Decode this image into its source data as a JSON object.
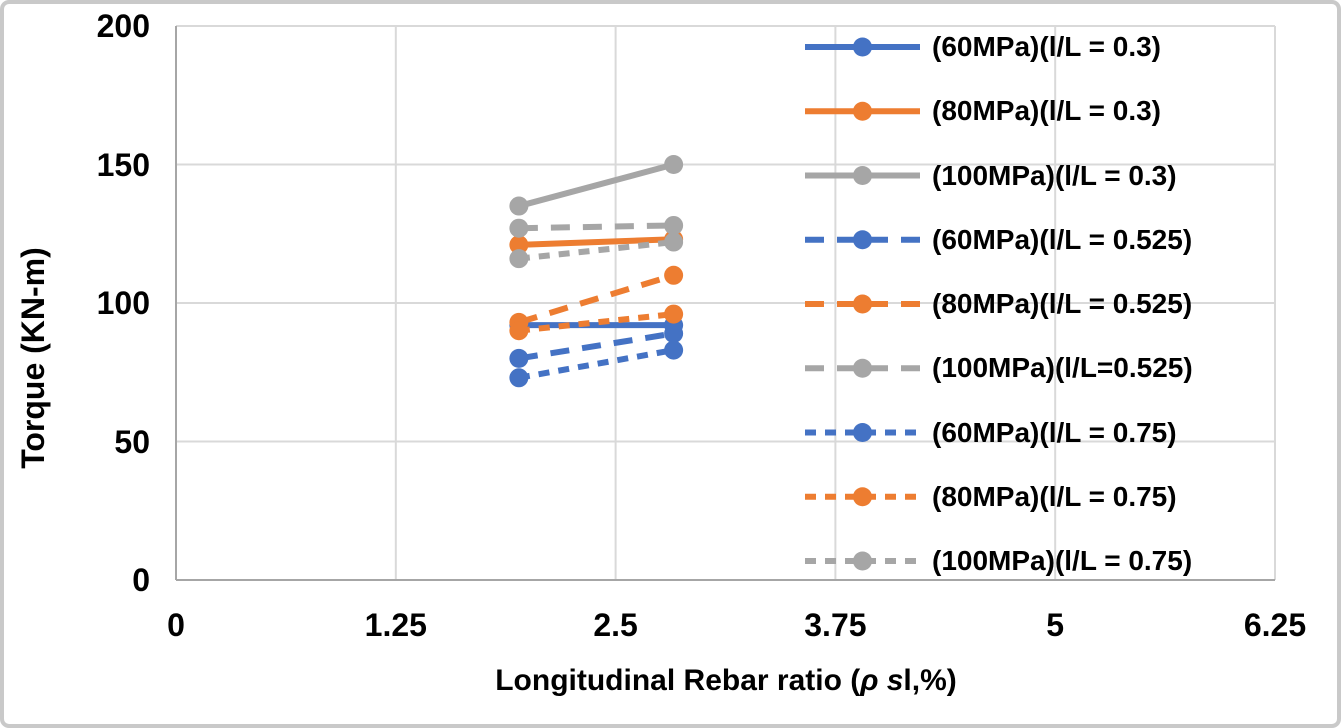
{
  "figure": {
    "background": "#ffffff",
    "border_color": "#c9c9c9"
  },
  "axis_titles": {
    "y": "Torque (KN-m)",
    "x_prefix": "Longitudinal Rebar ratio (",
    "x_italic": "ρ s",
    "x_suffix": "l,%)"
  },
  "chart_data": {
    "type": "line",
    "title": "",
    "x": [
      1.95,
      2.83
    ],
    "series": [
      {
        "name": "(60MPa)(l/L = 0.3)",
        "color": "#4472C4",
        "dash": "solid",
        "values": [
          92,
          92
        ]
      },
      {
        "name": "(80MPa)(l/L = 0.3)",
        "color": "#ED7D31",
        "dash": "solid",
        "values": [
          121,
          123
        ]
      },
      {
        "name": "(100MPa)(l/L = 0.3)",
        "color": "#A6A6A6",
        "dash": "solid",
        "values": [
          135,
          150
        ]
      },
      {
        "name": "(60MPa)(l/L = 0.525)",
        "color": "#4472C4",
        "dash": "dash",
        "values": [
          80,
          89
        ]
      },
      {
        "name": "(80MPa)(l/L = 0.525)",
        "color": "#ED7D31",
        "dash": "dash",
        "values": [
          93,
          110
        ]
      },
      {
        "name": "(100MPa)(l/L=0.525)",
        "color": "#A6A6A6",
        "dash": "dash",
        "values": [
          127,
          128
        ]
      },
      {
        "name": "(60MPa)(l/L = 0.75)",
        "color": "#4472C4",
        "dash": "shortdash",
        "values": [
          73,
          83
        ]
      },
      {
        "name": "(80MPa)(l/L = 0.75)",
        "color": "#ED7D31",
        "dash": "shortdash",
        "values": [
          90,
          96
        ]
      },
      {
        "name": "(100MPa)(l/L = 0.75)",
        "color": "#A6A6A6",
        "dash": "shortdash",
        "values": [
          116,
          122
        ]
      }
    ],
    "xlabel": "Longitudinal Rebar ratio (ρ sl,%)",
    "ylabel": "Torque (KN-m)",
    "xlim": [
      0,
      6.25
    ],
    "ylim": [
      0,
      200
    ],
    "x_ticks": [
      0,
      1.25,
      2.5,
      3.75,
      5,
      6.25
    ],
    "x_tick_labels": [
      "0",
      "1.25",
      "2.5",
      "3.75",
      "5",
      "6.25"
    ],
    "y_ticks": [
      0,
      50,
      100,
      150,
      200
    ],
    "y_tick_labels": [
      "0",
      "50",
      "100",
      "150",
      "200"
    ],
    "grid": true,
    "legend_position": "upper right",
    "colors": {
      "grid": "#d9d9d9",
      "axis": "#a6a6a6",
      "text": "#000000"
    }
  }
}
